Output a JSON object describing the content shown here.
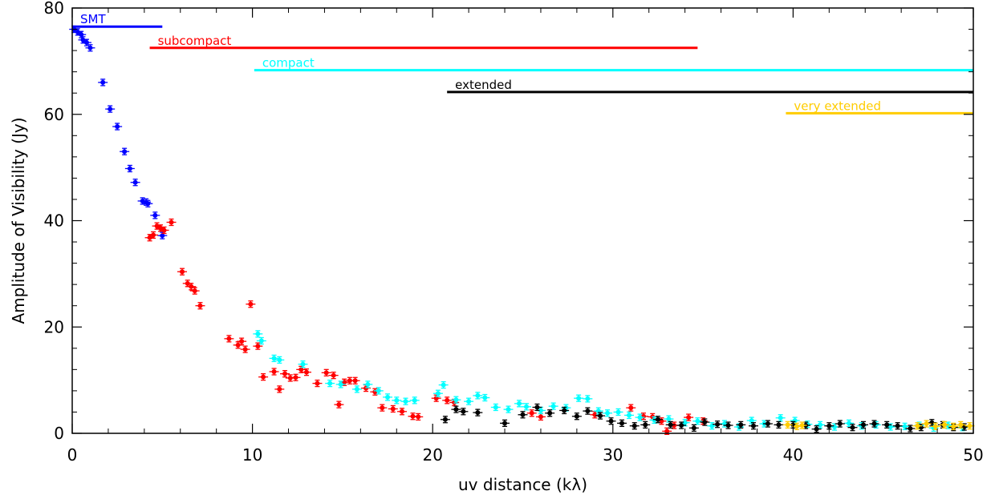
{
  "chart_data": {
    "type": "scatter",
    "xlabel": "uv distance (kλ)",
    "ylabel": "Amplitude of Visibility (Jy)",
    "xlim": [
      0,
      50
    ],
    "ylim": [
      0,
      80
    ],
    "x_ticks": [
      0,
      10,
      20,
      30,
      40,
      50
    ],
    "y_ticks": [
      0,
      20,
      40,
      60,
      80
    ],
    "x_tick_labels": [
      "0",
      "10",
      "20",
      "30",
      "40",
      "50"
    ],
    "y_tick_labels": [
      "0",
      "20",
      "40",
      "60",
      "80"
    ],
    "grid": false,
    "error_bars": true,
    "configurations": [
      {
        "label": "SMT",
        "color": "#0000ff",
        "x_range": [
          0,
          5.0
        ],
        "y": 76.5
      },
      {
        "label": "subcompact",
        "color": "#ff0000",
        "x_range": [
          4.3,
          34.7
        ],
        "y": 72.5
      },
      {
        "label": "compact",
        "color": "#00ffff",
        "x_range": [
          10.1,
          50
        ],
        "y": 68.3
      },
      {
        "label": "extended",
        "color": "#000000",
        "x_range": [
          20.8,
          50
        ],
        "y": 64.2
      },
      {
        "label": "very extended",
        "color": "#ffcc00",
        "x_range": [
          39.6,
          50
        ],
        "y": 60.2
      }
    ],
    "series": [
      {
        "color": "#0000ff",
        "points": [
          [
            0.1,
            76
          ],
          [
            0.3,
            75.5
          ],
          [
            0.5,
            75
          ],
          [
            0.6,
            74
          ],
          [
            0.8,
            73.5
          ],
          [
            1.0,
            72.5
          ],
          [
            1.7,
            66
          ],
          [
            2.1,
            61
          ],
          [
            2.5,
            57.7
          ],
          [
            2.9,
            53
          ],
          [
            3.2,
            49.8
          ],
          [
            3.5,
            47.2
          ],
          [
            3.9,
            43.7
          ],
          [
            4.1,
            43.5
          ],
          [
            4.2,
            43.2
          ],
          [
            4.6,
            41
          ],
          [
            5.0,
            37.2
          ]
        ]
      },
      {
        "color": "#ff0000",
        "points": [
          [
            4.3,
            36.8
          ],
          [
            4.5,
            37.3
          ],
          [
            4.7,
            39
          ],
          [
            4.9,
            38.6
          ],
          [
            5.1,
            38.2
          ],
          [
            5.5,
            39.7
          ],
          [
            6.1,
            30.4
          ],
          [
            6.4,
            28.2
          ],
          [
            6.6,
            27.6
          ],
          [
            6.8,
            26.8
          ],
          [
            7.1,
            24
          ],
          [
            8.7,
            17.8
          ],
          [
            9.2,
            16.6
          ],
          [
            9.4,
            17.3
          ],
          [
            9.6,
            15.8
          ],
          [
            9.9,
            24.3
          ],
          [
            10.3,
            16.4
          ],
          [
            10.6,
            10.6
          ],
          [
            11.2,
            11.6
          ],
          [
            11.5,
            8.3
          ],
          [
            11.8,
            11.2
          ],
          [
            12.1,
            10.4
          ],
          [
            12.4,
            10.5
          ],
          [
            12.7,
            12
          ],
          [
            13.0,
            11.5
          ],
          [
            13.6,
            9.4
          ],
          [
            14.1,
            11.4
          ],
          [
            14.5,
            10.9
          ],
          [
            14.8,
            5.4
          ],
          [
            15.1,
            9.6
          ],
          [
            15.4,
            9.9
          ],
          [
            15.7,
            9.9
          ],
          [
            16.3,
            8.5
          ],
          [
            16.8,
            7.8
          ],
          [
            17.2,
            4.8
          ],
          [
            17.8,
            4.6
          ],
          [
            18.3,
            4.1
          ],
          [
            18.9,
            3.2
          ],
          [
            19.2,
            3.1
          ],
          [
            20.2,
            6.6
          ],
          [
            20.8,
            6.2
          ],
          [
            21.2,
            5.8
          ],
          [
            25.5,
            3.8
          ],
          [
            26.0,
            3.1
          ],
          [
            29.0,
            3.5
          ],
          [
            31.0,
            4.8
          ],
          [
            31.7,
            3.2
          ],
          [
            32.2,
            3.1
          ],
          [
            32.7,
            2.3
          ],
          [
            33.0,
            0.4
          ],
          [
            33.4,
            1.5
          ],
          [
            34.2,
            3.0
          ],
          [
            35.0,
            2.3
          ]
        ]
      },
      {
        "color": "#00ffff",
        "points": [
          [
            10.3,
            18.7
          ],
          [
            10.5,
            17.4
          ],
          [
            11.2,
            14.1
          ],
          [
            11.5,
            13.8
          ],
          [
            12.8,
            13
          ],
          [
            14.3,
            9.4
          ],
          [
            14.9,
            9.2
          ],
          [
            15.8,
            8.3
          ],
          [
            16.4,
            9.2
          ],
          [
            17.0,
            8.0
          ],
          [
            17.5,
            6.8
          ],
          [
            18.0,
            6.2
          ],
          [
            18.5,
            6.0
          ],
          [
            19.0,
            6.2
          ],
          [
            20.3,
            7.5
          ],
          [
            20.6,
            9.1
          ],
          [
            21.3,
            6.3
          ],
          [
            22.0,
            6.0
          ],
          [
            22.5,
            7.1
          ],
          [
            22.9,
            6.7
          ],
          [
            23.5,
            4.9
          ],
          [
            24.2,
            4.5
          ],
          [
            24.8,
            5.6
          ],
          [
            25.2,
            5.0
          ],
          [
            26.0,
            4.3
          ],
          [
            26.7,
            5.1
          ],
          [
            27.4,
            4.8
          ],
          [
            28.1,
            6.6
          ],
          [
            28.6,
            6.5
          ],
          [
            29.2,
            4.2
          ],
          [
            29.7,
            3.8
          ],
          [
            30.3,
            4.0
          ],
          [
            30.9,
            3.4
          ],
          [
            31.5,
            3.0
          ],
          [
            32.3,
            2.5
          ],
          [
            33.1,
            2.7
          ],
          [
            34.0,
            2.0
          ],
          [
            34.7,
            2.3
          ],
          [
            35.5,
            1.4
          ],
          [
            36.2,
            1.8
          ],
          [
            37.0,
            1.2
          ],
          [
            37.7,
            2.4
          ],
          [
            38.4,
            1.8
          ],
          [
            39.3,
            2.9
          ],
          [
            40.1,
            2.4
          ],
          [
            40.8,
            1.7
          ],
          [
            41.5,
            1.6
          ],
          [
            42.3,
            1.2
          ],
          [
            43.1,
            1.9
          ],
          [
            43.8,
            1.4
          ],
          [
            44.6,
            1.6
          ],
          [
            45.4,
            1.2
          ],
          [
            46.2,
            1.3
          ],
          [
            47.0,
            1.5
          ],
          [
            47.8,
            1.0
          ],
          [
            48.6,
            1.5
          ],
          [
            49.4,
            1.1
          ]
        ]
      },
      {
        "color": "#000000",
        "points": [
          [
            20.7,
            2.6
          ],
          [
            21.3,
            4.5
          ],
          [
            21.7,
            4.1
          ],
          [
            22.5,
            3.9
          ],
          [
            24.0,
            1.9
          ],
          [
            25.0,
            3.5
          ],
          [
            25.8,
            4.9
          ],
          [
            26.5,
            3.8
          ],
          [
            27.3,
            4.3
          ],
          [
            28.0,
            3.2
          ],
          [
            28.6,
            4.2
          ],
          [
            29.3,
            3.3
          ],
          [
            29.9,
            2.3
          ],
          [
            30.5,
            1.9
          ],
          [
            31.2,
            1.4
          ],
          [
            31.8,
            1.6
          ],
          [
            32.5,
            2.6
          ],
          [
            33.2,
            1.6
          ],
          [
            33.8,
            1.5
          ],
          [
            34.5,
            1.0
          ],
          [
            35.1,
            2.1
          ],
          [
            35.8,
            1.7
          ],
          [
            36.4,
            1.5
          ],
          [
            37.1,
            1.6
          ],
          [
            37.8,
            1.4
          ],
          [
            38.6,
            1.8
          ],
          [
            39.2,
            1.6
          ],
          [
            40.0,
            1.6
          ],
          [
            40.7,
            1.5
          ],
          [
            41.3,
            0.8
          ],
          [
            42.0,
            1.4
          ],
          [
            42.6,
            1.8
          ],
          [
            43.3,
            1.1
          ],
          [
            43.9,
            1.6
          ],
          [
            44.5,
            1.8
          ],
          [
            45.2,
            1.6
          ],
          [
            45.8,
            1.4
          ],
          [
            46.5,
            0.9
          ],
          [
            47.1,
            1.1
          ],
          [
            47.7,
            2.0
          ],
          [
            48.3,
            1.6
          ],
          [
            48.9,
            1.1
          ],
          [
            49.5,
            1.2
          ]
        ]
      },
      {
        "color": "#ffcc00",
        "points": [
          [
            39.7,
            1.6
          ],
          [
            40.2,
            1.3
          ],
          [
            40.5,
            1.5
          ],
          [
            46.9,
            1.4
          ],
          [
            47.4,
            1.8
          ],
          [
            47.9,
            1.3
          ],
          [
            48.4,
            1.6
          ],
          [
            48.9,
            1.3
          ],
          [
            49.3,
            1.6
          ],
          [
            49.8,
            1.4
          ]
        ]
      }
    ]
  }
}
